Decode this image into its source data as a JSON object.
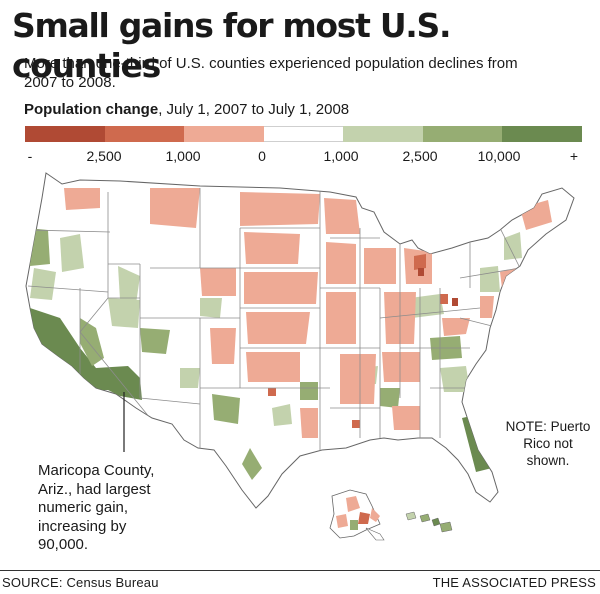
{
  "title": "Small gains for most U.S. counties",
  "subtitle": "More than one-third of U.S. counties experienced population declines from 2007 to 2008.",
  "legend": {
    "label_bold": "Population change",
    "label_rest": ", July 1, 2007 to July 1, 2008",
    "swatch_colors": [
      "#b04a34",
      "#cf6a4e",
      "#eeaa95",
      "#ffffff",
      "#c3d2ad",
      "#96ad73",
      "#6b8a50"
    ],
    "ticks": [
      "-",
      "2,500",
      "1,000",
      "0",
      "1,000",
      "2,500",
      "10,000",
      "+"
    ]
  },
  "map": {
    "colors": {
      "land": "#ffffff",
      "border": "#8c8c8c",
      "loss_large": "#b04a34",
      "loss_mid": "#cf6a4e",
      "loss_small": "#eeaa95",
      "gain_small": "#c3d2ad",
      "gain_mid": "#96ad73",
      "gain_large": "#6b8a50"
    }
  },
  "note": "NOTE: Puerto Rico not shown.",
  "callout": "Maricopa County, Ariz., had largest numeric gain, increasing by 90,000.",
  "source": "SOURCE: Census Bureau",
  "credit": "THE ASSOCIATED PRESS"
}
